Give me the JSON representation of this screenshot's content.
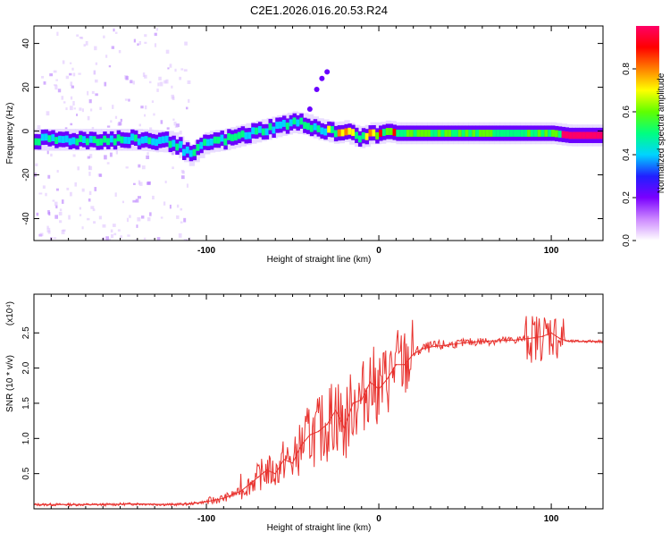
{
  "title": "C2E1.2026.016.20.53.R24",
  "chart_data": [
    {
      "type": "heatmap",
      "title": "C2E1.2026.016.20.53.R24",
      "xlabel": "Height of straight line (km)",
      "ylabel": "Frequency (Hz)",
      "xlim": [
        -200,
        130
      ],
      "ylim": [
        -50,
        48
      ],
      "x_tick_labels": [
        "-100",
        "0",
        "100"
      ],
      "x_ticks": [
        -100,
        0,
        100
      ],
      "y_tick_labels": [
        "-40",
        "-20",
        "0",
        "20",
        "40"
      ],
      "y_ticks": [
        -40,
        -20,
        0,
        20,
        40
      ],
      "frequency_track": {
        "x": [
          -198,
          -180,
          -160,
          -140,
          -120,
          -110,
          -100,
          -90,
          -80,
          -70,
          -60,
          -50,
          -42,
          -36,
          -30,
          -25,
          -20,
          -15,
          -10,
          -5,
          0,
          5,
          10,
          20,
          40,
          60,
          80,
          100,
          110,
          130
        ],
        "y": [
          -4,
          -4,
          -4,
          -4,
          -5,
          -11,
          -5,
          -4,
          -2,
          0,
          2,
          4,
          3,
          1,
          0,
          -1,
          0,
          -2,
          -3,
          -1,
          -1,
          0,
          -1,
          -1,
          -1,
          -1,
          -1,
          -1,
          -2,
          -2
        ]
      },
      "colorbar": {
        "label": "Normalized spectral amplitude",
        "range": [
          0,
          1
        ],
        "tick_labels": [
          "0.0",
          "0.2",
          "0.4",
          "0.6",
          "0.8"
        ],
        "ticks": [
          0.0,
          0.2,
          0.4,
          0.6,
          0.8
        ],
        "colors": [
          "#ffffff",
          "#cc88ff",
          "#7a00ff",
          "#2020ff",
          "#00d4ff",
          "#00ff80",
          "#60ff00",
          "#ffff00",
          "#ff8000",
          "#ff0000",
          "#ff0066"
        ]
      }
    },
    {
      "type": "line",
      "xlabel": "Height of straight line (km)",
      "ylabel": "SNR (10 * v/v)",
      "scale_label": "(x10⁴)",
      "xlim": [
        -200,
        130
      ],
      "ylim": [
        0,
        3.05
      ],
      "x_tick_labels": [
        "-100",
        "0",
        "100"
      ],
      "x_ticks": [
        -100,
        0,
        100
      ],
      "y_tick_labels": [
        "0.5",
        "1.0",
        "1.5",
        "2.0",
        "2.5"
      ],
      "y_ticks": [
        0.5,
        1.0,
        1.5,
        2.0,
        2.5
      ],
      "color": "#e8322e",
      "series": [
        {
          "x": [
            -200,
            -180,
            -160,
            -140,
            -120,
            -110,
            -100,
            -90,
            -80,
            -75,
            -70,
            -65,
            -60,
            -55,
            -50,
            -45,
            -40,
            -35,
            -30,
            -25,
            -20,
            -15,
            -10,
            -5,
            0,
            5,
            10,
            15,
            20,
            25,
            30,
            40,
            50,
            60,
            70,
            80,
            90,
            95,
            100,
            105,
            110,
            120,
            130
          ],
          "y": [
            0.06,
            0.06,
            0.06,
            0.07,
            0.06,
            0.07,
            0.1,
            0.15,
            0.25,
            0.35,
            0.45,
            0.55,
            0.5,
            0.7,
            0.65,
            0.9,
            1.05,
            1.1,
            1.2,
            1.4,
            1.15,
            1.5,
            1.55,
            1.8,
            1.7,
            1.85,
            2.05,
            2.05,
            2.2,
            2.27,
            2.3,
            2.33,
            2.36,
            2.38,
            2.39,
            2.4,
            2.43,
            2.45,
            2.5,
            2.42,
            2.38,
            2.38,
            2.38
          ]
        }
      ]
    }
  ]
}
